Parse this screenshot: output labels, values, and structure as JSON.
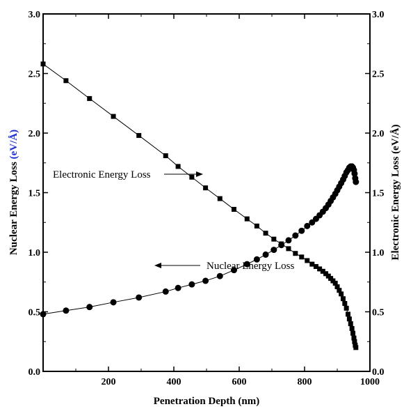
{
  "chart_data": {
    "type": "scatter",
    "title": "",
    "xlabel": "Penetration Depth (nm)",
    "ylabel_left_main": "Nuclear Energy Loss ",
    "ylabel_left_unit": "(eV/Å)",
    "ylabel_right": "Electronic Energy Loss (eV/Å)",
    "xlim": [
      0,
      1000
    ],
    "ylim": [
      0.0,
      3.0
    ],
    "y2lim": [
      0.0,
      3.0
    ],
    "x_ticks": [
      "200",
      "400",
      "600",
      "800",
      "1000"
    ],
    "y_ticks": [
      "0.0",
      "0.5",
      "1.0",
      "1.5",
      "2.0",
      "2.5",
      "3.0"
    ],
    "grid": false,
    "annotations": [
      {
        "text": "Electronic Energy Loss",
        "points_to": "electronic series"
      },
      {
        "text": "Nuclear Energy Loss",
        "points_to": "nuclear series"
      }
    ],
    "series": [
      {
        "name": "Electronic Energy Loss",
        "marker": "square",
        "axis": "right",
        "x": [
          0,
          70,
          142,
          215,
          293,
          375,
          413,
          455,
          497,
          541,
          584,
          624,
          654,
          681,
          706,
          729,
          751,
          772,
          791,
          808,
          823,
          835,
          846,
          856,
          865,
          873,
          880,
          887,
          894,
          900,
          906,
          912,
          918,
          923,
          928,
          933,
          937,
          941,
          945,
          948,
          951,
          953,
          955,
          957
        ],
        "y": [
          2.58,
          2.44,
          2.29,
          2.14,
          1.98,
          1.81,
          1.72,
          1.63,
          1.54,
          1.45,
          1.36,
          1.28,
          1.22,
          1.16,
          1.11,
          1.07,
          1.03,
          0.99,
          0.96,
          0.93,
          0.9,
          0.88,
          0.86,
          0.84,
          0.82,
          0.8,
          0.78,
          0.76,
          0.74,
          0.71,
          0.68,
          0.65,
          0.61,
          0.57,
          0.53,
          0.48,
          0.44,
          0.4,
          0.36,
          0.32,
          0.28,
          0.25,
          0.22,
          0.2
        ]
      },
      {
        "name": "Nuclear Energy Loss",
        "marker": "circle",
        "axis": "left",
        "x": [
          0,
          70,
          142,
          215,
          293,
          375,
          413,
          455,
          497,
          541,
          584,
          624,
          654,
          681,
          706,
          729,
          751,
          772,
          791,
          808,
          823,
          835,
          846,
          856,
          865,
          873,
          880,
          887,
          894,
          900,
          906,
          912,
          918,
          923,
          928,
          933,
          937,
          941,
          945,
          948,
          951,
          953,
          955,
          957
        ],
        "y": [
          0.48,
          0.51,
          0.54,
          0.58,
          0.62,
          0.67,
          0.7,
          0.73,
          0.76,
          0.8,
          0.85,
          0.9,
          0.94,
          0.98,
          1.02,
          1.06,
          1.1,
          1.14,
          1.18,
          1.22,
          1.25,
          1.28,
          1.31,
          1.34,
          1.37,
          1.4,
          1.43,
          1.46,
          1.49,
          1.52,
          1.55,
          1.58,
          1.61,
          1.64,
          1.67,
          1.69,
          1.71,
          1.72,
          1.72,
          1.71,
          1.69,
          1.66,
          1.62,
          1.59
        ]
      }
    ]
  }
}
